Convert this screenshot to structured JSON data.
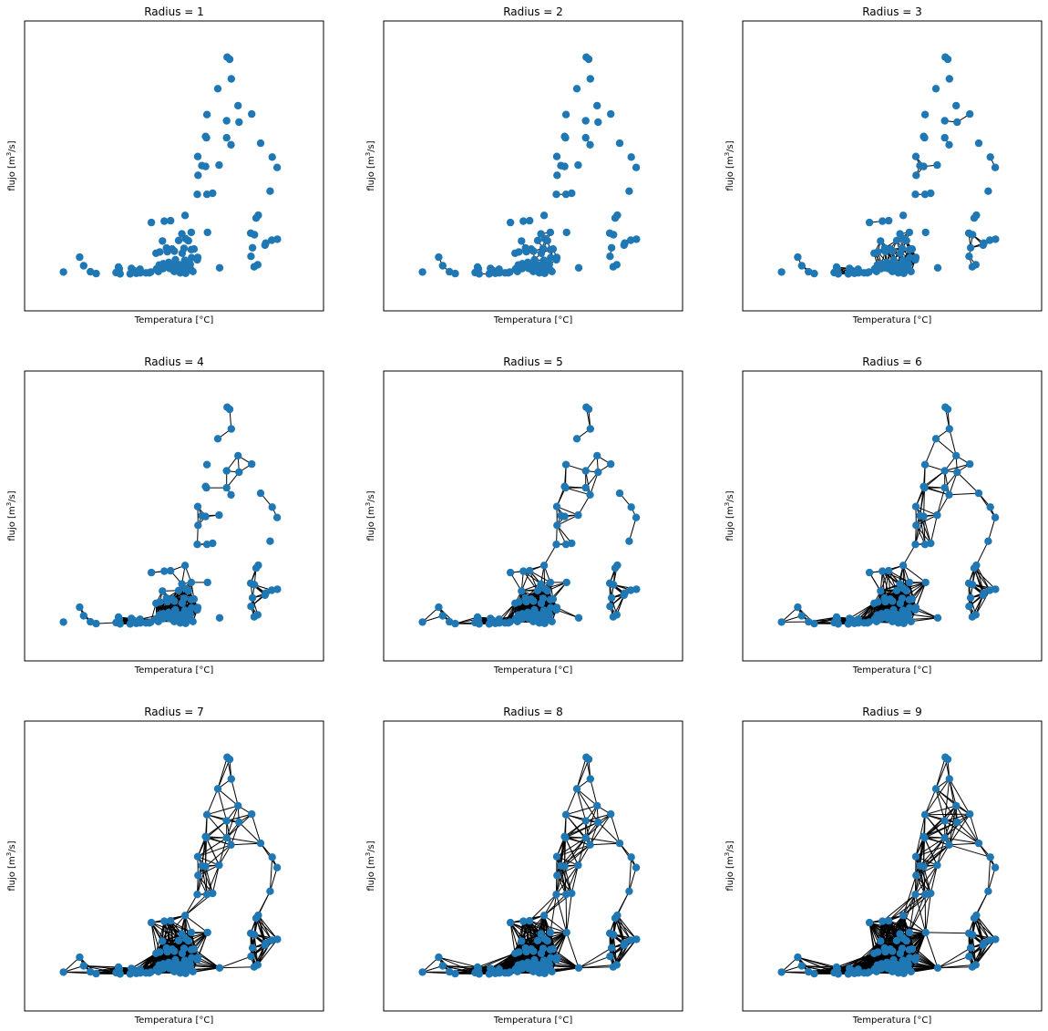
{
  "figure": {
    "xlabel": "Temperatura [°C]",
    "ylabel_base": "flujo [m",
    "ylabel_sup": "3",
    "ylabel_tail": "/s]",
    "node_color": "#1f77b4",
    "edge_color": "#000000"
  },
  "chart_data": {
    "type": "scatter",
    "xlabel": "Temperatura [°C]",
    "ylabel": "flujo [m3/s]",
    "xlim": [
      0,
      100
    ],
    "ylim": [
      0,
      100
    ],
    "grid": false,
    "ticks_visible": false,
    "panels": [
      {
        "title": "Radius = 1",
        "radius": 1
      },
      {
        "title": "Radius = 2",
        "radius": 2
      },
      {
        "title": "Radius = 3",
        "radius": 3
      },
      {
        "title": "Radius = 4",
        "radius": 4
      },
      {
        "title": "Radius = 5",
        "radius": 5
      },
      {
        "title": "Radius = 6",
        "radius": 6
      },
      {
        "title": "Radius = 7",
        "radius": 7
      },
      {
        "title": "Radius = 8",
        "radius": 8
      },
      {
        "title": "Radius = 9",
        "radius": 9
      }
    ],
    "points": [
      [
        69.7,
        91.7
      ],
      [
        70.6,
        90.9
      ],
      [
        71.2,
        83.4
      ],
      [
        66.2,
        79.6
      ],
      [
        73.7,
        73.1
      ],
      [
        62.2,
        69.7
      ],
      [
        69.5,
        67.3
      ],
      [
        74.1,
        66.8
      ],
      [
        78.8,
        69.9
      ],
      [
        61.7,
        61.3
      ],
      [
        62.0,
        60.8
      ],
      [
        69.5,
        60.8
      ],
      [
        71.1,
        58.1
      ],
      [
        82.1,
        58.7
      ],
      [
        86.4,
        53.4
      ],
      [
        88.2,
        49.4
      ],
      [
        58.8,
        53.6
      ],
      [
        60.3,
        50.1
      ],
      [
        61.7,
        49.8
      ],
      [
        66.7,
        50.3
      ],
      [
        58.9,
        46.4
      ],
      [
        85.6,
        40.3
      ],
      [
        64.3,
        39.5
      ],
      [
        58.6,
        39.1
      ],
      [
        62.2,
        39.1
      ],
      [
        81.2,
        31.1
      ],
      [
        80.4,
        30.0
      ],
      [
        54.1,
        31.0
      ],
      [
        46.4,
        28.8
      ],
      [
        48.7,
        29.0
      ],
      [
        41.6,
        28.3
      ],
      [
        56.4,
        24.5
      ],
      [
        62.4,
        24.5
      ],
      [
        52.9,
        23.9
      ],
      [
        54.3,
        22.1
      ],
      [
        55.3,
        21.3
      ],
      [
        51.7,
        21.4
      ],
      [
        78.4,
        24.2
      ],
      [
        79.8,
        23.6
      ],
      [
        79.1,
        18.6
      ],
      [
        84.0,
        20.4
      ],
      [
        86.2,
        21.5
      ],
      [
        88.3,
        21.9
      ],
      [
        83.7,
        19.6
      ],
      [
        45.7,
        21.2
      ],
      [
        47.2,
        18.5
      ],
      [
        49.3,
        18.1
      ],
      [
        53.7,
        18.4
      ],
      [
        56.4,
        17.9
      ],
      [
        57.4,
        18.1
      ],
      [
        56.5,
        14.8
      ],
      [
        58.8,
        14.9
      ],
      [
        54.0,
        13.8
      ],
      [
        56.0,
        12.3
      ],
      [
        52.1,
        12.1
      ],
      [
        43.3,
        16.5
      ],
      [
        44.7,
        17.0
      ],
      [
        47.5,
        17.1
      ],
      [
        50.1,
        17.3
      ],
      [
        78.5,
        15.3
      ],
      [
        81.0,
        12.1
      ],
      [
        58.6,
        14.0
      ],
      [
        55.1,
        11.8
      ],
      [
        15.0,
        15.0
      ],
      [
        16.5,
        11.7
      ],
      [
        9.0,
        9.3
      ],
      [
        19.0,
        9.4
      ],
      [
        21.1,
        8.7
      ],
      [
        29.7,
        10.5
      ],
      [
        29.4,
        11.2
      ],
      [
        28.5,
        9.1
      ],
      [
        30.0,
        8.6
      ],
      [
        34.2,
        10.7
      ],
      [
        35.2,
        9.8
      ],
      [
        37.5,
        9.0
      ],
      [
        36.0,
        8.8
      ],
      [
        33.7,
        8.6
      ],
      [
        37.4,
        10.4
      ],
      [
        39.6,
        9.0
      ],
      [
        40.8,
        9.0
      ],
      [
        41.4,
        9.3
      ],
      [
        43.5,
        10.5
      ],
      [
        44.2,
        9.5
      ],
      [
        45.9,
        10.6
      ],
      [
        47.5,
        11.6
      ],
      [
        48.3,
        10.7
      ],
      [
        49.7,
        10.0
      ],
      [
        50.1,
        9.5
      ],
      [
        51.2,
        9.8
      ],
      [
        52.3,
        9.0
      ],
      [
        53.3,
        9.5
      ],
      [
        54.3,
        8.8
      ],
      [
        55.1,
        10.0
      ],
      [
        56.2,
        10.3
      ],
      [
        57.0,
        9.5
      ],
      [
        51.6,
        10.6
      ],
      [
        49.9,
        11.6
      ],
      [
        53.2,
        11.9
      ],
      [
        66.9,
        10.9
      ],
      [
        79.7,
        11.3
      ],
      [
        53.0,
        16.5
      ],
      [
        50.5,
        14.0
      ],
      [
        48.0,
        13.0
      ],
      [
        46.0,
        12.5
      ],
      [
        44.5,
        12.0
      ]
    ]
  }
}
